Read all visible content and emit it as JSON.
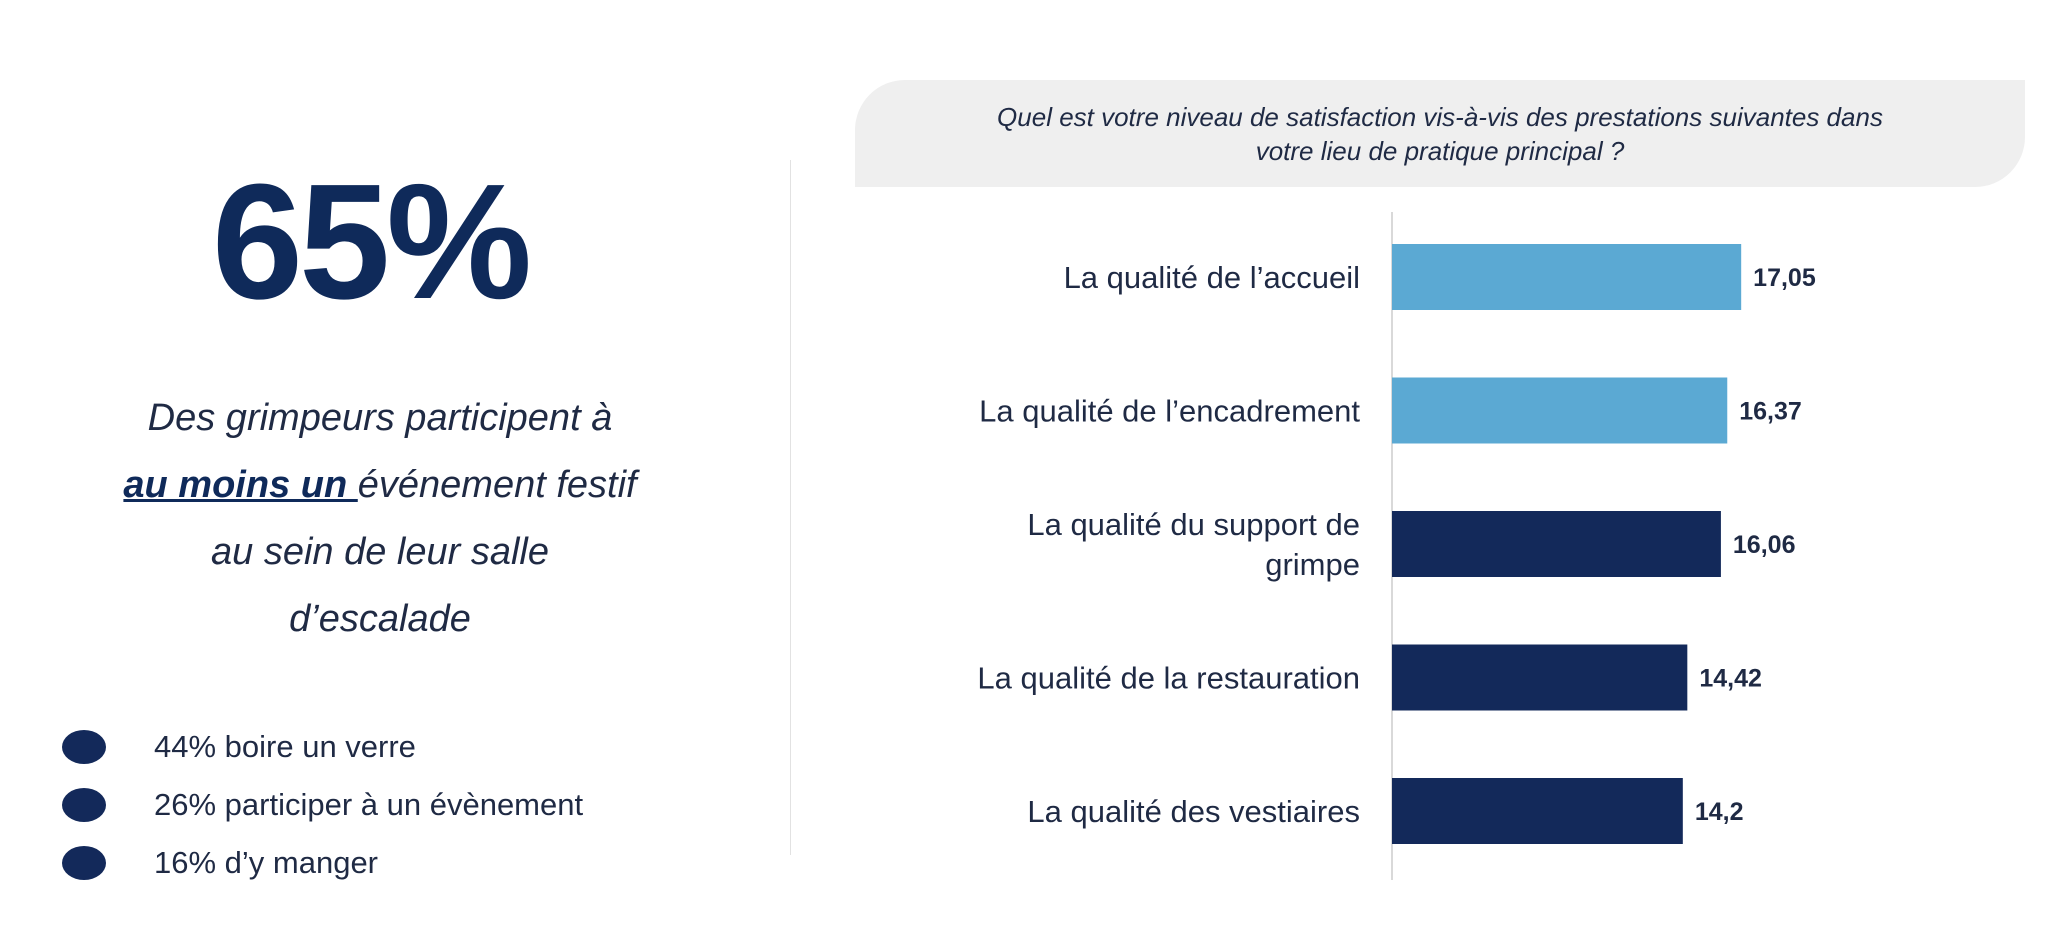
{
  "left": {
    "big_stat": "65%",
    "desc_line1": "Des grimpeurs participent à",
    "desc_emphasis": "au moins un ",
    "desc_line2_rest": "événement festif",
    "desc_line3": "au sein de leur salle",
    "desc_line4": "d’escalade",
    "bullets": [
      {
        "label": "44% boire un verre"
      },
      {
        "label": "26% participer à un évènement"
      },
      {
        "label": "16% d’y manger"
      }
    ]
  },
  "question": {
    "line1": "Quel est votre niveau de satisfaction vis-à-vis des prestations suivantes dans",
    "line2": "votre lieu de pratique principal ?"
  },
  "colors": {
    "light_bar": "#5ba9d3",
    "dark_bar": "#13295a",
    "dot": "#13295a"
  },
  "chart_data": {
    "type": "bar",
    "orientation": "horizontal",
    "categories": [
      [
        "La qualité de l’accueil"
      ],
      [
        "La qualité de l’encadrement"
      ],
      [
        "La qualité du support de",
        "grimpe"
      ],
      [
        "La qualité de la restauration"
      ],
      [
        "La qualité des vestiaires"
      ]
    ],
    "values": [
      17.05,
      16.37,
      16.06,
      14.42,
      14.2
    ],
    "value_labels": [
      "17,05",
      "16,37",
      "16,06",
      "14,42",
      "14,2"
    ],
    "bar_colors": [
      "#5ba9d3",
      "#5ba9d3",
      "#13295a",
      "#13295a",
      "#13295a"
    ],
    "title": "",
    "xlabel": "",
    "ylabel": "",
    "grid": false,
    "legend": "none"
  }
}
